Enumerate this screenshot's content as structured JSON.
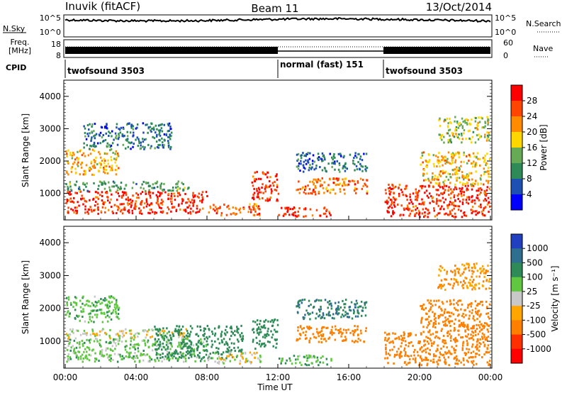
{
  "header": {
    "station": "Inuvik (fitACF)",
    "beam": "Beam 11",
    "date": "13/Oct/2014"
  },
  "noise_panel": {
    "left_label": "N.Sky",
    "right_label": "N.Search",
    "left_ticks": [
      "10^5",
      "10^0"
    ],
    "right_ticks": [
      "10^5",
      "10^0"
    ]
  },
  "freq_panel": {
    "left_label": "Freq.",
    "left_unit": "[MHz]",
    "right_label": "Nave",
    "left_ticks": [
      "18",
      "8"
    ],
    "right_ticks": [
      "60",
      "0"
    ]
  },
  "cpid": {
    "label": "CPID",
    "segments": [
      {
        "name": "twofsound 3503",
        "start_hour": 0,
        "end_hour": 12
      },
      {
        "name": "normal (fast) 151",
        "start_hour": 12,
        "end_hour": 18
      },
      {
        "name": "twofsound 3503",
        "start_hour": 18,
        "end_hour": 24
      }
    ]
  },
  "colorbars": {
    "power": {
      "label": "Power [dB]",
      "ticks": [
        "28",
        "24",
        "20",
        "16",
        "12",
        "8",
        "4"
      ],
      "colors": [
        "#ff0000",
        "#ff4500",
        "#ff8c00",
        "#ffd700",
        "#66aa55",
        "#2e8b57",
        "#1e50b4",
        "#0000ff"
      ]
    },
    "velocity": {
      "label": "Velocity [m s⁻¹]",
      "ticks": [
        "1000",
        "500",
        "100",
        "25",
        "-25",
        "-100",
        "-500",
        "-1000"
      ],
      "colors": [
        "#2040c0",
        "#2e6e8e",
        "#2e8b57",
        "#5fc840",
        "#c8c8c8",
        "#ffa500",
        "#ff7f00",
        "#ff3000",
        "#ff0000"
      ]
    }
  },
  "x_axis": {
    "ticks": [
      "00:00",
      "04:00",
      "08:00",
      "12:00",
      "16:00",
      "20:00",
      "00:00"
    ],
    "label": "Time UT"
  },
  "chart_data": [
    {
      "type": "heatmap",
      "quantity": "power",
      "xlabel": "Time UT",
      "ylabel": "Slant Range [km]",
      "xlim": [
        0,
        24
      ],
      "ylim": [
        180,
        4500
      ],
      "yticks": [
        "1000",
        "2000",
        "3000",
        "4000"
      ],
      "zlim": [
        0,
        30
      ],
      "bands": [
        {
          "t0": 0,
          "t1": 8,
          "r0": 400,
          "r1": 1100,
          "level": 28
        },
        {
          "t0": 0,
          "t1": 7,
          "r0": 1100,
          "r1": 1400,
          "level": 12
        },
        {
          "t0": 0,
          "t1": 3,
          "r0": 1600,
          "r1": 2400,
          "level": 20
        },
        {
          "t0": 1,
          "t1": 6,
          "r0": 2400,
          "r1": 3200,
          "level": 8
        },
        {
          "t0": 8,
          "t1": 11,
          "r0": 350,
          "r1": 700,
          "level": 24
        },
        {
          "t0": 10.5,
          "t1": 12,
          "r0": 800,
          "r1": 1700,
          "level": 28
        },
        {
          "t0": 12,
          "t1": 15,
          "r0": 300,
          "r1": 600,
          "level": 28
        },
        {
          "t0": 13,
          "t1": 17,
          "r0": 1000,
          "r1": 1500,
          "level": 24
        },
        {
          "t0": 13,
          "t1": 17,
          "r0": 1700,
          "r1": 2300,
          "level": 8
        },
        {
          "t0": 18,
          "t1": 24,
          "r0": 300,
          "r1": 1300,
          "level": 28
        },
        {
          "t0": 20,
          "t1": 24,
          "r0": 1300,
          "r1": 2300,
          "level": 20
        },
        {
          "t0": 21,
          "t1": 24,
          "r0": 2600,
          "r1": 3400,
          "level": 16
        }
      ]
    },
    {
      "type": "heatmap",
      "quantity": "velocity",
      "xlabel": "Time UT",
      "ylabel": "Slant Range [km]",
      "xlim": [
        0,
        24
      ],
      "ylim": [
        180,
        4500
      ],
      "yticks": [
        "1000",
        "2000",
        "3000",
        "4000"
      ],
      "zlim": [
        -1000,
        1000
      ],
      "bands": [
        {
          "t0": 0,
          "t1": 8,
          "r0": 400,
          "r1": 1100,
          "level": 60
        },
        {
          "t0": 0,
          "t1": 7,
          "r0": 1100,
          "r1": 1400,
          "level": 0
        },
        {
          "t0": 0,
          "t1": 3,
          "r0": 1600,
          "r1": 2400,
          "level": 80
        },
        {
          "t0": 5,
          "t1": 10,
          "r0": 500,
          "r1": 1500,
          "level": 300
        },
        {
          "t0": 8,
          "t1": 11,
          "r0": 350,
          "r1": 700,
          "level": 0
        },
        {
          "t0": 10.5,
          "t1": 12,
          "r0": 800,
          "r1": 1700,
          "level": 400
        },
        {
          "t0": 12,
          "t1": 15,
          "r0": 300,
          "r1": 600,
          "level": 80
        },
        {
          "t0": 13,
          "t1": 17,
          "r0": 1000,
          "r1": 1500,
          "level": -300
        },
        {
          "t0": 13,
          "t1": 17,
          "r0": 1700,
          "r1": 2300,
          "level": 500
        },
        {
          "t0": 18,
          "t1": 24,
          "r0": 300,
          "r1": 1300,
          "level": -300
        },
        {
          "t0": 20,
          "t1": 24,
          "r0": 1300,
          "r1": 2300,
          "level": -200
        },
        {
          "t0": 21,
          "t1": 24,
          "r0": 2600,
          "r1": 3400,
          "level": -100
        }
      ]
    }
  ]
}
